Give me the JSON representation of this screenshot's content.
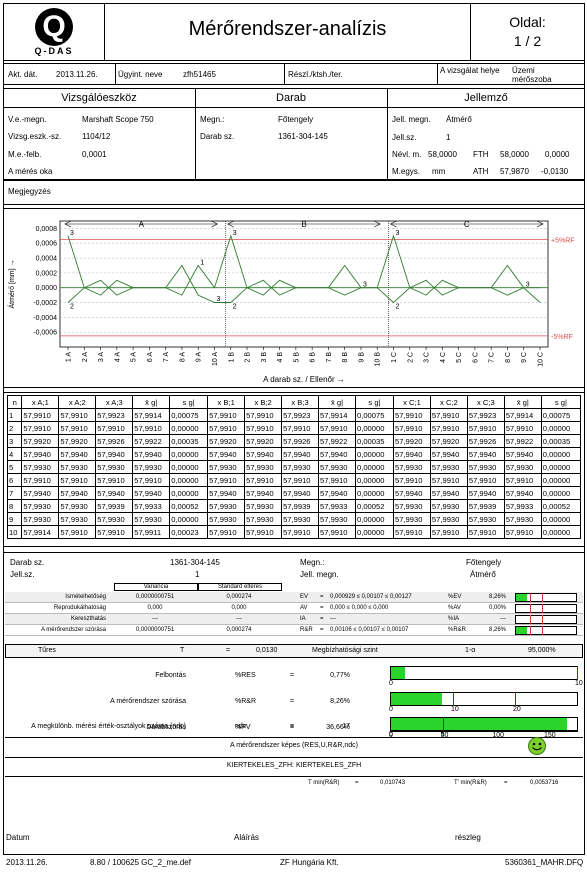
{
  "header": {
    "logo_letter": "Q",
    "logo_text": "Q-DAS",
    "title": "Mérőrendszer-analízis",
    "page_label": "Oldal:",
    "page_value": "1 / 2"
  },
  "info": {
    "akt_dat_label": "Akt. dát.",
    "akt_dat": "2013.11.26.",
    "ugyint_label": "Ügyint. neve",
    "ugyint": "zfh51465",
    "reszl_label": "Részl./ktsh./ter.",
    "vizsgalat_label": "A vizsgálat helye",
    "vizsgalat": "Üzemi mérőszoba"
  },
  "sections": {
    "tool": "Vizsgálóeszköz",
    "part": "Darab",
    "feature": "Jellemző"
  },
  "tool": {
    "vemegn_label": "V.e.-megn.",
    "vemegn": "Marshaft Scope 750",
    "vizsg_label": "Vizsg.eszk.-sz.",
    "vizsg": "1104/12",
    "mefelb_label": "M.e.-felb.",
    "mefelb": "0,0001",
    "ok_label": "A mérés oka"
  },
  "part": {
    "megn_label": "Megn.:",
    "megn": "Főtengely",
    "dsz_label": "Darab sz.",
    "dsz": "1361-304-145"
  },
  "feature": {
    "jm_label": "Jell. megn.",
    "jm": "Átmérő",
    "jsz_label": "Jell.sz.",
    "jsz": "1",
    "nevl_label": "Névl. m.",
    "nevl": "58,0000",
    "fth_label": "FTH",
    "fth": "58,0000",
    "fth_dev": "0,0000",
    "megys_label": "M.egys.",
    "megys": "mm",
    "ath_label": "ATH",
    "ath": "57,9870",
    "ath_dev": "-0,0130"
  },
  "megjegyzes_label": "Megjegyzés",
  "chart_data": {
    "type": "line",
    "ylabel": "Átmérő [mm] →",
    "xlabel": "A darab sz. / Ellenőr →",
    "groups": [
      "A",
      "B",
      "C"
    ],
    "yticks": [
      "0,0008",
      "0,0006",
      "0,0004",
      "0,0002",
      "0,0000",
      "-0,0002",
      "-0,0004",
      "-0,0006"
    ],
    "ylim": [
      -0.0008,
      0.0009
    ],
    "limit_upper_label": "+5%RF",
    "limit_lower_label": "-5%RF",
    "limit_upper": 0.00065,
    "limit_lower": -0.00065,
    "xticklabels": [
      "1 A",
      "2 A",
      "3 A",
      "4 A",
      "5 A",
      "6 A",
      "7 A",
      "8 A",
      "9 A",
      "10 A",
      "1 B",
      "2 B",
      "3 B",
      "4 B",
      "5 B",
      "6 B",
      "7 B",
      "8 B",
      "9 B",
      "10 B",
      "1 C",
      "2 C",
      "3 C",
      "4 C",
      "5 C",
      "6 C",
      "7 C",
      "8 C",
      "9 C",
      "10 C"
    ],
    "series": [
      {
        "values": [
          0.0007,
          0.0,
          -0.0001,
          0.0001,
          0.0,
          0.0,
          0.0,
          -0.0001,
          0.0003,
          0.0,
          0.0007,
          0.0,
          -0.0001,
          0.0001,
          0.0,
          0.0,
          0.0,
          -0.0001,
          0.0,
          0.0,
          0.0007,
          0.0,
          -0.0001,
          0.0001,
          0.0,
          0.0,
          0.0,
          -0.0001,
          0.0,
          0.0
        ]
      },
      {
        "values": [
          -0.0002,
          0.0,
          0.0001,
          -0.0001,
          0.0,
          0.0,
          0.0,
          0.0003,
          -0.0001,
          -0.0002,
          -0.0002,
          0.0,
          0.0001,
          -0.0001,
          0.0,
          0.0,
          0.0,
          0.0003,
          0.0,
          0.0,
          -0.0002,
          0.0,
          0.0001,
          -0.0001,
          0.0,
          0.0,
          0.0,
          0.0003,
          0.0,
          -0.0002
        ]
      }
    ],
    "point_labels": [
      {
        "text": "3",
        "i": 0,
        "v": 0.0007
      },
      {
        "text": "2",
        "i": 0,
        "v": -0.0002
      },
      {
        "text": "1",
        "i": 8,
        "v": 0.0003
      },
      {
        "text": "3",
        "i": 9,
        "v": -0.0001
      },
      {
        "text": "3",
        "i": 10,
        "v": 0.0007
      },
      {
        "text": "2",
        "i": 10,
        "v": -0.0002
      },
      {
        "text": "3",
        "i": 18,
        "v": 0.0
      },
      {
        "text": "3",
        "i": 20,
        "v": 0.0007
      },
      {
        "text": "2",
        "i": 20,
        "v": -0.0002
      },
      {
        "text": "3",
        "i": 28,
        "v": 0.0
      }
    ],
    "colors": {
      "line": "#2e7d2e",
      "limit": "#e05050"
    }
  },
  "table": {
    "headers": [
      "n",
      "x A;1",
      "x A;2",
      "x A;3",
      "x̄ g|",
      "s g|",
      "x B;1",
      "x B;2",
      "x B;3",
      "x̄ g|",
      "s g|",
      "x C;1",
      "x C;2",
      "x C;3",
      "x̄ g|",
      "s g|"
    ],
    "rows": [
      [
        "1",
        "57,9910",
        "57,9910",
        "57,9923",
        "57,9914",
        "0,00075",
        "57,9910",
        "57,9910",
        "57,9923",
        "57,9914",
        "0,00075",
        "57,9910",
        "57,9910",
        "57,9923",
        "57,9914",
        "0,00075"
      ],
      [
        "2",
        "57,9910",
        "57,9910",
        "57,9910",
        "57,9910",
        "0,00000",
        "57,9910",
        "57,9910",
        "57,9910",
        "57,9910",
        "0,00000",
        "57,9910",
        "57,9910",
        "57,9910",
        "57,9910",
        "0,00000"
      ],
      [
        "3",
        "57,9920",
        "57,9920",
        "57,9926",
        "57,9922",
        "0,00035",
        "57,9920",
        "57,9920",
        "57,9926",
        "57,9922",
        "0,00035",
        "57,9920",
        "57,9920",
        "57,9926",
        "57,9922",
        "0,00035"
      ],
      [
        "4",
        "57,9940",
        "57,9940",
        "57,9940",
        "57,9940",
        "0,00000",
        "57,9940",
        "57,9940",
        "57,9940",
        "57,9940",
        "0,00000",
        "57,9940",
        "57,9940",
        "57,9940",
        "57,9940",
        "0,00000"
      ],
      [
        "5",
        "57,9930",
        "57,9930",
        "57,9930",
        "57,9930",
        "0,00000",
        "57,9930",
        "57,9930",
        "57,9930",
        "57,9930",
        "0,00000",
        "57,9930",
        "57,9930",
        "57,9930",
        "57,9930",
        "0,00000"
      ],
      [
        "6",
        "57,9910",
        "57,9910",
        "57,9910",
        "57,9910",
        "0,00000",
        "57,9910",
        "57,9910",
        "57,9910",
        "57,9910",
        "0,00000",
        "57,9910",
        "57,9910",
        "57,9910",
        "57,9910",
        "0,00000"
      ],
      [
        "7",
        "57,9940",
        "57,9940",
        "57,9940",
        "57,9940",
        "0,00000",
        "57,9940",
        "57,9940",
        "57,9940",
        "57,9940",
        "0,00000",
        "57,9940",
        "57,9940",
        "57,9940",
        "57,9940",
        "0,00000"
      ],
      [
        "8",
        "57,9930",
        "57,9930",
        "57,9939",
        "57,9933",
        "0,00052",
        "57,9930",
        "57,9930",
        "57,9939",
        "57,9933",
        "0,00052",
        "57,9930",
        "57,9930",
        "57,9939",
        "57,9933",
        "0,00052"
      ],
      [
        "9",
        "57,9930",
        "57,9930",
        "57,9930",
        "57,9930",
        "0,00000",
        "57,9930",
        "57,9930",
        "57,9930",
        "57,9930",
        "0,00000",
        "57,9930",
        "57,9930",
        "57,9930",
        "57,9930",
        "0,00000"
      ],
      [
        "10",
        "57,9914",
        "57,9910",
        "57,9910",
        "57,9911",
        "0,00023",
        "57,9910",
        "57,9910",
        "57,9910",
        "57,9910",
        "0,00000",
        "57,9910",
        "57,9910",
        "57,9910",
        "57,9910",
        "0,00000"
      ]
    ]
  },
  "summary": {
    "dsz_label": "Darab sz.",
    "dsz": "1361-304-145",
    "jsz_label": "Jell.sz.",
    "jsz": "1",
    "megn_label": "Megn.:",
    "megn": "Főtengely",
    "jm_label": "Jell. megn.",
    "jm": "Átmérő",
    "col_var": "Variancia",
    "col_std": "Standard eltérés",
    "rows": [
      {
        "label": "Ismételhetőség",
        "var": "0,0000000751",
        "std": "0,000274",
        "sym": "EV",
        "eq": "=",
        "ci": "0,000929 ≤ 0,00107 ≤ 0,00127",
        "pct_label": "%EV",
        "pct": "8,26%"
      },
      {
        "label": "Reprodukálhatóság",
        "var": "0,000",
        "std": "0,000",
        "sym": "AV",
        "eq": "=",
        "ci": "0,000 ≤ 0,000 ≤ 0,000",
        "pct_label": "%AV",
        "pct": "0,00%"
      },
      {
        "label": "Kereszthatás",
        "var": "---",
        "std": "---",
        "sym": "IA",
        "eq": "=",
        "ci": "---",
        "pct_label": "%IA",
        "pct": "---"
      },
      {
        "label": "A mérőrendszer szórása",
        "var": "0,0000000751",
        "std": "0,000274",
        "sym": "R&R",
        "eq": "=",
        "ci": "0,00106 ≤ 0,00107 ≤ 0,00107",
        "pct_label": "%R&R",
        "pct": "8,26%"
      }
    ],
    "tures_label": "Tűres",
    "t_label": "T",
    "eq": "=",
    "tures": "0,0130",
    "megbiz_label": "Megbízhatósági szint",
    "alpha_label": "1-α",
    "megbiz": "95,000%"
  },
  "metrics": [
    {
      "label": "Felbontás",
      "sym": "%RES",
      "eq": "=",
      "val": "0,77%",
      "ticks": [
        "0",
        "10"
      ],
      "fill": 0.77
    },
    {
      "label": "A mérőrendszer szórása",
      "sym": "%R&R",
      "eq": "=",
      "val": "8,26%",
      "ticks": [
        "0",
        "10",
        "20"
      ],
      "fill": 8.26
    },
    {
      "label": "Darabszórás",
      "sym": "%PV",
      "eq": "=",
      "val": "36,66%",
      "ticks": [
        "0",
        "50",
        "100",
        "150"
      ],
      "fill": 36.66
    },
    {
      "label": "A megkülönb. mérési érték-osztályok száma (ndc)",
      "sym": "ndc",
      "eq": "=",
      "val": "17",
      "ticks": [
        "0",
        "5"
      ],
      "fill": 17
    }
  ],
  "capable_text": "A mérőrendszer képes (RES,U,R&R,ndc)",
  "kiert_text": "KIERTEKELES_ZFH: KIERTEKELES_ZFH",
  "tmin_rr_label": "T min(R&R)",
  "tmin_rr": "0,010743",
  "tmin_rr2_label": "T' min(R&R)",
  "tmin_rr2": "0,0053716",
  "footer": {
    "datum": "Datum",
    "alairas": "Aláírás",
    "reszleg": "részleg",
    "date": "2013.11.26.",
    "ver": "8.80 / 100625 GC_2_me.def",
    "company": "ZF Hungária Kft.",
    "file": "5360361_MAHR.DFQ"
  }
}
